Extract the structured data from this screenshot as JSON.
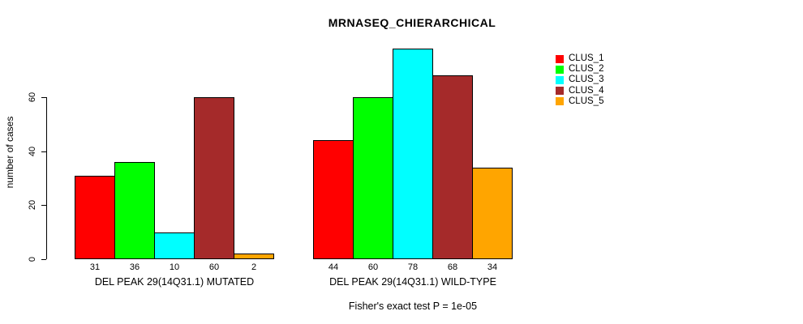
{
  "chart_data": {
    "type": "bar",
    "title": "MRNASEQ_CHIERARCHICAL",
    "ylabel": "number of cases",
    "xlabel": "",
    "yticks": [
      0,
      20,
      40,
      60
    ],
    "ylim": [
      0,
      83
    ],
    "grid": false,
    "legend_position": "right",
    "bar_values_shown_below_bars": true,
    "categories": [
      "DEL PEAK 29(14Q31.1) MUTATED",
      "DEL PEAK 29(14Q31.1) WILD-TYPE"
    ],
    "series": [
      {
        "name": "CLUS_1",
        "color": "#FF0000",
        "values": [
          31,
          44
        ]
      },
      {
        "name": "CLUS_2",
        "color": "#00FF00",
        "values": [
          36,
          60
        ]
      },
      {
        "name": "CLUS_3",
        "color": "#00FFFF",
        "values": [
          10,
          78
        ]
      },
      {
        "name": "CLUS_4",
        "color": "#A52A2A",
        "values": [
          60,
          68
        ]
      },
      {
        "name": "CLUS_5",
        "color": "#FFA500",
        "values": [
          2,
          34
        ]
      }
    ],
    "annotation": "Fisher's exact test P = 1e-05"
  },
  "colors": {
    "background": "#FFFFFF",
    "text": "#000000",
    "axis": "#000000",
    "bar_border": "#000000"
  }
}
